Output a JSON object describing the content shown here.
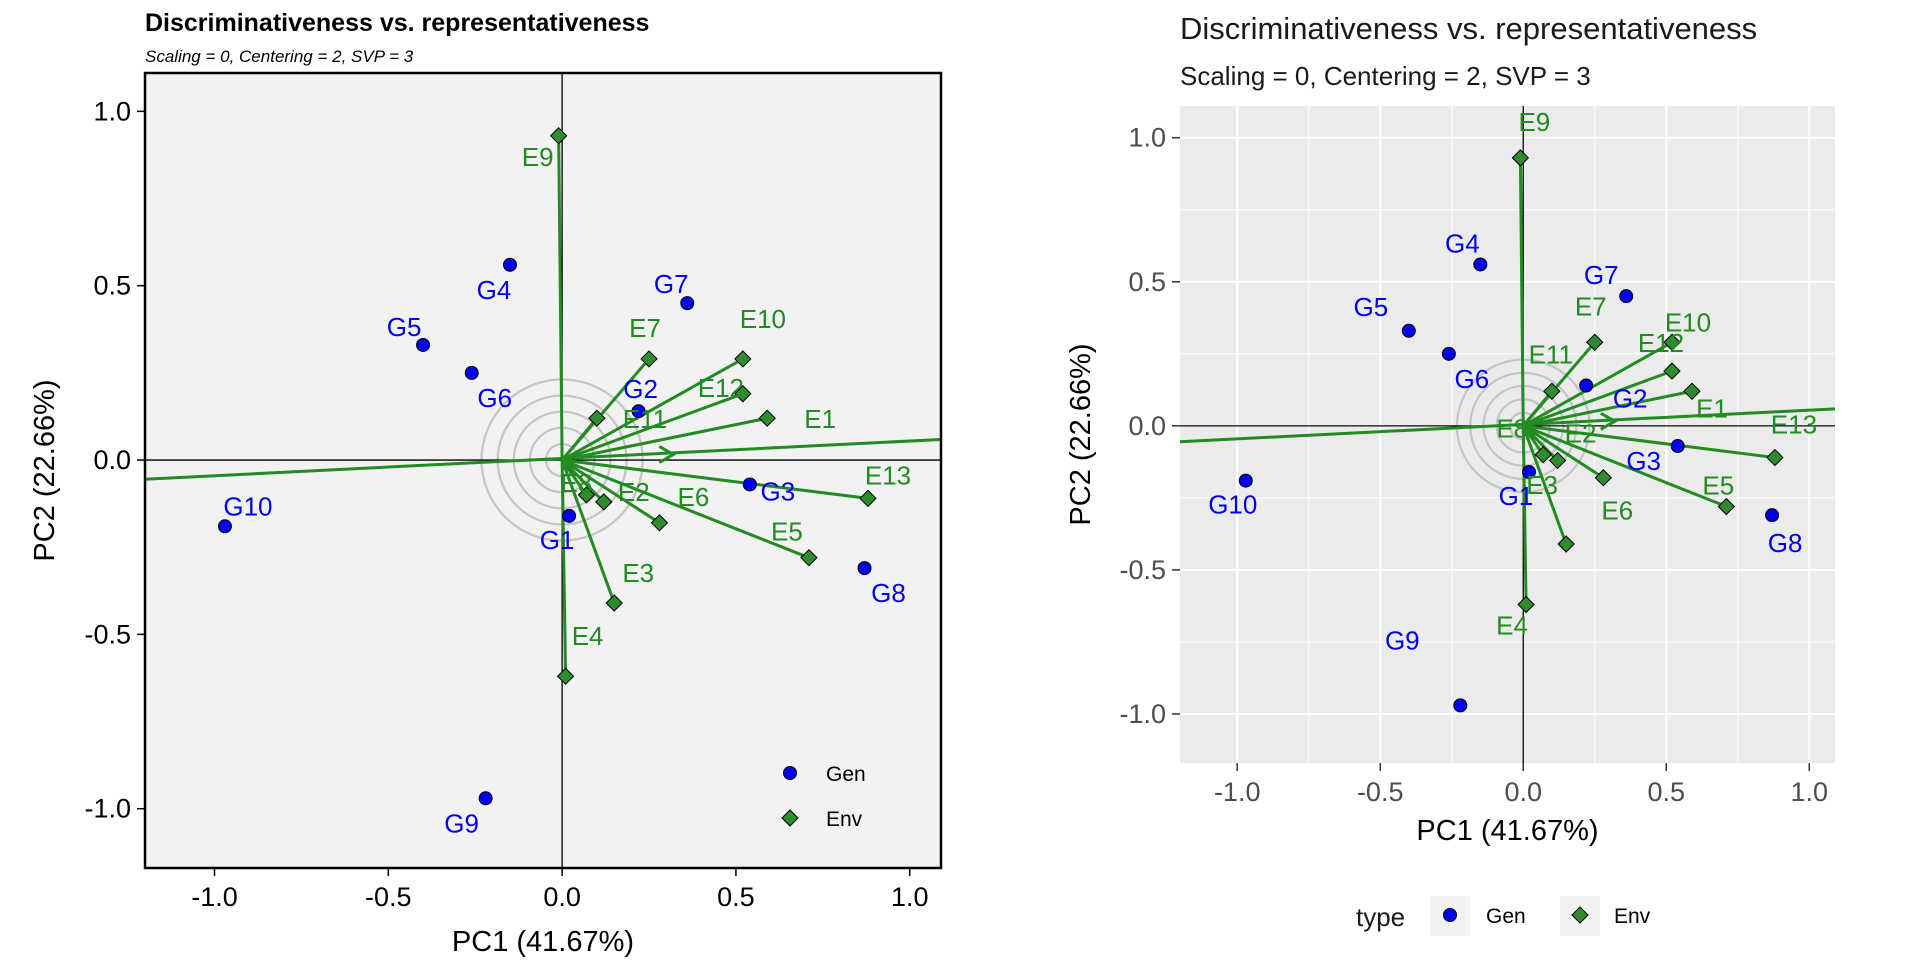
{
  "colors": {
    "gen": "#0000ee",
    "env": "#228b22",
    "env_fill": "#2e8b2e",
    "panel1_bg": "#f2f2f2",
    "panel2_bg": "#ebebeb"
  },
  "chart_data": [
    {
      "type": "scatter",
      "title": "Discriminativeness vs. representativeness",
      "subtitle": "Scaling = 0, Centering = 2, SVP = 3",
      "xlabel": "PC1 (41.67%)",
      "ylabel": "PC2 (22.66%)",
      "xlim": [
        -1.2,
        1.09
      ],
      "ylim": [
        -1.17,
        1.11
      ],
      "xticks": [
        -1.0,
        -0.5,
        0.0,
        0.5,
        1.0
      ],
      "xtick_labels": [
        "-1.0",
        "-0.5",
        "0.0",
        "0.5",
        "1.0"
      ],
      "yticks": [
        -1.0,
        -0.5,
        0.0,
        0.5,
        1.0
      ],
      "ytick_labels": [
        "-1.0",
        "-0.5",
        "0.0",
        "0.5",
        "1.0"
      ],
      "grid": false,
      "legend": {
        "placement": "bottom-right",
        "entries": [
          "Gen",
          "Env"
        ]
      },
      "gen_points": [
        {
          "name": "G1",
          "x": 0.02,
          "y": -0.16
        },
        {
          "name": "G2",
          "x": 0.22,
          "y": 0.14
        },
        {
          "name": "G3",
          "x": 0.54,
          "y": -0.07
        },
        {
          "name": "G4",
          "x": -0.15,
          "y": 0.56
        },
        {
          "name": "G5",
          "x": -0.4,
          "y": 0.33
        },
        {
          "name": "G6",
          "x": -0.26,
          "y": 0.25
        },
        {
          "name": "G7",
          "x": 0.36,
          "y": 0.45
        },
        {
          "name": "G8",
          "x": 0.87,
          "y": -0.31
        },
        {
          "name": "G9",
          "x": -0.22,
          "y": -0.97
        },
        {
          "name": "G10",
          "x": -0.97,
          "y": -0.19
        }
      ],
      "env_points": [
        {
          "name": "E1",
          "x": 0.59,
          "y": 0.12
        },
        {
          "name": "E2",
          "x": 0.12,
          "y": -0.12
        },
        {
          "name": "E3",
          "x": 0.15,
          "y": -0.41
        },
        {
          "name": "E4",
          "x": 0.01,
          "y": -0.62
        },
        {
          "name": "E5",
          "x": 0.71,
          "y": -0.28
        },
        {
          "name": "E6",
          "x": 0.28,
          "y": -0.18
        },
        {
          "name": "E7",
          "x": 0.25,
          "y": 0.29
        },
        {
          "name": "E8",
          "x": 0.07,
          "y": -0.1
        },
        {
          "name": "E9",
          "x": -0.01,
          "y": 0.93
        },
        {
          "name": "E10",
          "x": 0.52,
          "y": 0.29
        },
        {
          "name": "E11",
          "x": 0.1,
          "y": 0.12
        },
        {
          "name": "E12",
          "x": 0.52,
          "y": 0.19
        },
        {
          "name": "E13",
          "x": 0.88,
          "y": -0.11
        }
      ],
      "aec_line": {
        "from": [
          -1.2,
          -0.055
        ],
        "to": [
          1.09,
          0.059
        ]
      }
    },
    {
      "type": "scatter",
      "title": "Discriminativeness vs. representativeness",
      "subtitle": "Scaling = 0, Centering = 2, SVP = 3",
      "xlabel": "PC1 (41.67%)",
      "ylabel": "PC2 (22.66%)",
      "xlim": [
        -1.2,
        1.09
      ],
      "ylim": [
        -1.17,
        1.11
      ],
      "xticks": [
        -1.0,
        -0.5,
        0.0,
        0.5,
        1.0
      ],
      "xtick_labels": [
        "-1.0",
        "-0.5",
        "0.0",
        "0.5",
        "1.0"
      ],
      "yticks": [
        -1.0,
        -0.5,
        0.0,
        0.5,
        1.0
      ],
      "ytick_labels": [
        "-1.0",
        "-0.5",
        "0.0",
        "0.5",
        "1.0"
      ],
      "grid": true,
      "legend": {
        "placement": "bottom",
        "title": "type",
        "entries": [
          "Gen",
          "Env"
        ]
      },
      "gen_points": [
        {
          "name": "G1",
          "x": 0.02,
          "y": -0.16
        },
        {
          "name": "G2",
          "x": 0.22,
          "y": 0.14
        },
        {
          "name": "G3",
          "x": 0.54,
          "y": -0.07
        },
        {
          "name": "G4",
          "x": -0.15,
          "y": 0.56
        },
        {
          "name": "G5",
          "x": -0.4,
          "y": 0.33
        },
        {
          "name": "G6",
          "x": -0.26,
          "y": 0.25
        },
        {
          "name": "G7",
          "x": 0.36,
          "y": 0.45
        },
        {
          "name": "G8",
          "x": 0.87,
          "y": -0.31
        },
        {
          "name": "G9",
          "x": -0.22,
          "y": -0.97
        },
        {
          "name": "G10",
          "x": -0.97,
          "y": -0.19
        }
      ],
      "env_points": [
        {
          "name": "E1",
          "x": 0.59,
          "y": 0.12
        },
        {
          "name": "E2",
          "x": 0.12,
          "y": -0.12
        },
        {
          "name": "E3",
          "x": 0.15,
          "y": -0.41
        },
        {
          "name": "E4",
          "x": 0.01,
          "y": -0.62
        },
        {
          "name": "E5",
          "x": 0.71,
          "y": -0.28
        },
        {
          "name": "E6",
          "x": 0.28,
          "y": -0.18
        },
        {
          "name": "E7",
          "x": 0.25,
          "y": 0.29
        },
        {
          "name": "E8",
          "x": 0.07,
          "y": -0.1
        },
        {
          "name": "E9",
          "x": -0.01,
          "y": 0.93
        },
        {
          "name": "E10",
          "x": 0.52,
          "y": 0.29
        },
        {
          "name": "E11",
          "x": 0.1,
          "y": 0.12
        },
        {
          "name": "E12",
          "x": 0.52,
          "y": 0.19
        },
        {
          "name": "E13",
          "x": 0.88,
          "y": -0.11
        }
      ],
      "aec_line": {
        "from": [
          -1.2,
          -0.055
        ],
        "to": [
          1.09,
          0.059
        ]
      }
    }
  ]
}
